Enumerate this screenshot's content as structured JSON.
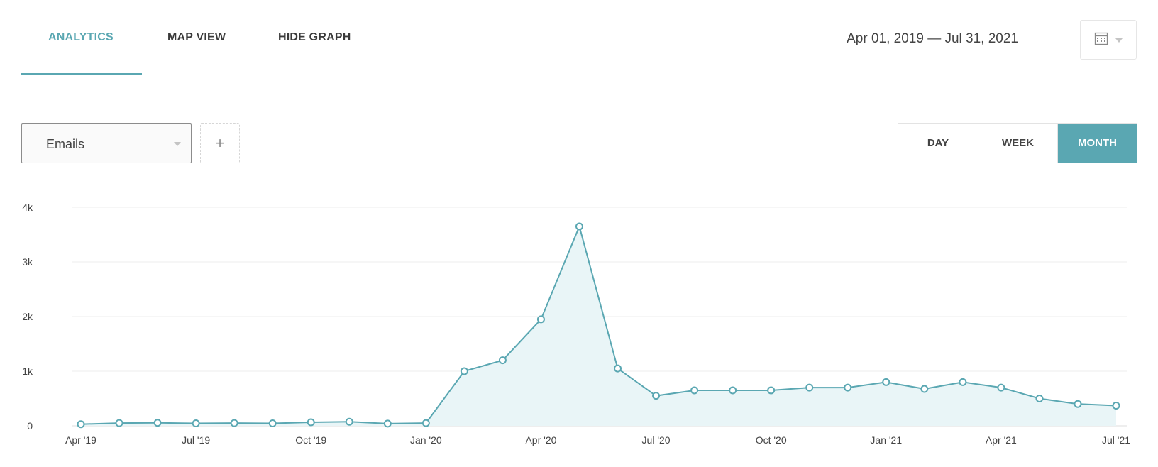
{
  "tabs": [
    {
      "label": "ANALYTICS",
      "active": true
    },
    {
      "label": "MAP VIEW",
      "active": false
    },
    {
      "label": "HIDE GRAPH",
      "active": false
    }
  ],
  "date_range": "Apr 01, 2019 — Jul 31, 2021",
  "calendar_icon": "calendar-icon",
  "metric_select": {
    "value": "Emails",
    "icon": "caret-down-icon"
  },
  "add_button": "+",
  "granularity": [
    {
      "label": "DAY",
      "active": false
    },
    {
      "label": "WEEK",
      "active": false
    },
    {
      "label": "MONTH",
      "active": true
    }
  ],
  "colors": {
    "accent": "#5aa7b2",
    "area_fill": "#e9f5f7",
    "grid": "#eeeeee"
  },
  "chart_data": {
    "type": "area",
    "x": [
      "Apr '19",
      "May '19",
      "Jun '19",
      "Jul '19",
      "Aug '19",
      "Sep '19",
      "Oct '19",
      "Nov '19",
      "Dec '19",
      "Jan '20",
      "Feb '20",
      "Mar '20",
      "Apr '20",
      "May '20",
      "Jun '20",
      "Jul '20",
      "Aug '20",
      "Sep '20",
      "Oct '20",
      "Nov '20",
      "Dec '20",
      "Jan '21",
      "Feb '21",
      "Mar '21",
      "Apr '21",
      "May '21",
      "Jun '21",
      "Jul '21"
    ],
    "series": [
      {
        "values": [
          30,
          50,
          55,
          45,
          50,
          45,
          65,
          75,
          40,
          50,
          1000,
          1200,
          1950,
          3650,
          1050,
          550,
          650,
          650,
          650,
          700,
          700,
          800,
          675,
          800,
          700,
          500,
          400,
          370
        ]
      }
    ],
    "x_tick_labels": [
      "Apr '19",
      "Jul '19",
      "Oct '19",
      "Jan '20",
      "Apr '20",
      "Jul '20",
      "Oct '20",
      "Jan '21",
      "Apr '21",
      "Jul '21"
    ],
    "y_ticks": [
      0,
      1000,
      2000,
      3000,
      4000
    ],
    "y_tick_labels": [
      "0",
      "1k",
      "2k",
      "3k",
      "4k"
    ],
    "ylim": [
      0,
      4000
    ],
    "grid": true,
    "title": "",
    "xlabel": "",
    "ylabel": ""
  }
}
